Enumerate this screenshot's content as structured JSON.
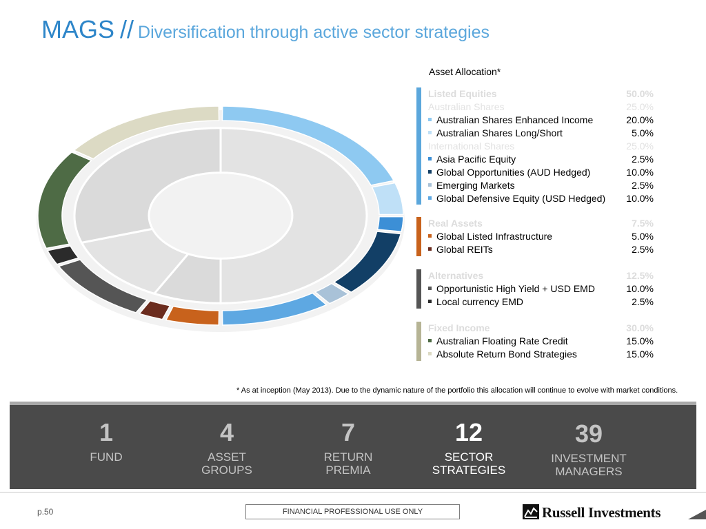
{
  "title": {
    "main": "MAGS",
    "separator": "//",
    "subtitle": "Diversification through active sector strategies"
  },
  "allocation": {
    "title": "Asset Allocation*",
    "groups": [
      {
        "name": "Listed Equities",
        "value": "50.0%",
        "color": "#5ba7dc",
        "rows": [
          {
            "kind": "sub",
            "label": "Australian Shares",
            "value": "25.0%"
          },
          {
            "kind": "item",
            "label": "Australian Shares Enhanced Income",
            "value": "20.0%",
            "color": "#8ec9f1"
          },
          {
            "kind": "item",
            "label": "Australian Shares Long/Short",
            "value": "5.0%",
            "color": "#bfe0f7"
          },
          {
            "kind": "sub",
            "label": "International Shares",
            "value": "25.0%"
          },
          {
            "kind": "item",
            "label": "Asia Pacific Equity",
            "value": "2.5%",
            "color": "#3c8fd6"
          },
          {
            "kind": "item",
            "label": "Global Opportunities (AUD Hedged)",
            "value": "10.0%",
            "color": "#123f66"
          },
          {
            "kind": "item",
            "label": "Emerging Markets",
            "value": "2.5%",
            "color": "#a9c2d8"
          },
          {
            "kind": "item",
            "label": "Global Defensive Equity (USD Hedged)",
            "value": "10.0%",
            "color": "#5ea8e2"
          }
        ]
      },
      {
        "name": "Real Assets",
        "value": "7.5%",
        "color": "#c8621c",
        "rows": [
          {
            "kind": "item",
            "label": "Global Listed Infrastructure",
            "value": "5.0%",
            "color": "#c8621c"
          },
          {
            "kind": "item",
            "label": "Global REITs",
            "value": "2.5%",
            "color": "#6b2c1e"
          }
        ]
      },
      {
        "name": "Alternatives",
        "value": "12.5%",
        "color": "#555555",
        "rows": [
          {
            "kind": "item",
            "label": "Opportunistic High Yield + USD EMD",
            "value": "10.0%",
            "color": "#555555"
          },
          {
            "kind": "item",
            "label": "Local currency EMD",
            "value": "2.5%",
            "color": "#2b2b2b"
          }
        ]
      },
      {
        "name": "Fixed Income",
        "value": "30.0%",
        "color": "#b6b495",
        "rows": [
          {
            "kind": "item",
            "label": "Australian Floating Rate Credit",
            "value": "15.0%",
            "color": "#4e6b45"
          },
          {
            "kind": "item",
            "label": "Absolute Return Bond Strategies",
            "value": "15.0%",
            "color": "#dcdac4"
          }
        ]
      }
    ]
  },
  "chart_data": {
    "type": "pie",
    "title": "Asset Allocation*",
    "slices": [
      {
        "label": "Australian Shares Enhanced Income",
        "value": 20.0,
        "group": "Listed Equities",
        "color": "#8ec9f1"
      },
      {
        "label": "Australian Shares Long/Short",
        "value": 5.0,
        "group": "Listed Equities",
        "color": "#bfe0f7"
      },
      {
        "label": "Asia Pacific Equity",
        "value": 2.5,
        "group": "Listed Equities",
        "color": "#3c8fd6"
      },
      {
        "label": "Global Opportunities (AUD Hedged)",
        "value": 10.0,
        "group": "Listed Equities",
        "color": "#123f66"
      },
      {
        "label": "Emerging Markets",
        "value": 2.5,
        "group": "Listed Equities",
        "color": "#a9c2d8"
      },
      {
        "label": "Global Defensive Equity (USD Hedged)",
        "value": 10.0,
        "group": "Listed Equities",
        "color": "#5ea8e2"
      },
      {
        "label": "Global Listed Infrastructure",
        "value": 5.0,
        "group": "Real Assets",
        "color": "#c8621c"
      },
      {
        "label": "Global REITs",
        "value": 2.5,
        "group": "Real Assets",
        "color": "#6b2c1e"
      },
      {
        "label": "Opportunistic High Yield + USD EMD",
        "value": 10.0,
        "group": "Alternatives",
        "color": "#555555"
      },
      {
        "label": "Local currency EMD",
        "value": 2.5,
        "group": "Alternatives",
        "color": "#2b2b2b"
      },
      {
        "label": "Australian Floating Rate Credit",
        "value": 15.0,
        "group": "Fixed Income",
        "color": "#4e6b45"
      },
      {
        "label": "Absolute Return Bond Strategies",
        "value": 15.0,
        "group": "Fixed Income",
        "color": "#dcdac4"
      }
    ],
    "groups": [
      {
        "label": "Listed Equities",
        "value": 50.0
      },
      {
        "label": "Real Assets",
        "value": 7.5
      },
      {
        "label": "Alternatives",
        "value": 12.5
      },
      {
        "label": "Fixed Income",
        "value": 30.0
      }
    ]
  },
  "footnote": "* As at inception (May 2013). Due to the dynamic nature of the portfolio this allocation will continue to evolve with market conditions.",
  "stats": [
    {
      "number": "1",
      "label_line1": "FUND",
      "label_line2": ""
    },
    {
      "number": "4",
      "label_line1": "ASSET",
      "label_line2": "GROUPS"
    },
    {
      "number": "7",
      "label_line1": "RETURN",
      "label_line2": "PREMIA"
    },
    {
      "number": "12",
      "label_line1": "SECTOR",
      "label_line2": "STRATEGIES",
      "highlight": true
    },
    {
      "number": "39",
      "label_line1": "INVESTMENT",
      "label_line2": "MANAGERS"
    }
  ],
  "footer": {
    "page": "p.50",
    "notice": "FINANCIAL PROFESSIONAL USE ONLY",
    "brand": "Russell Investments"
  }
}
